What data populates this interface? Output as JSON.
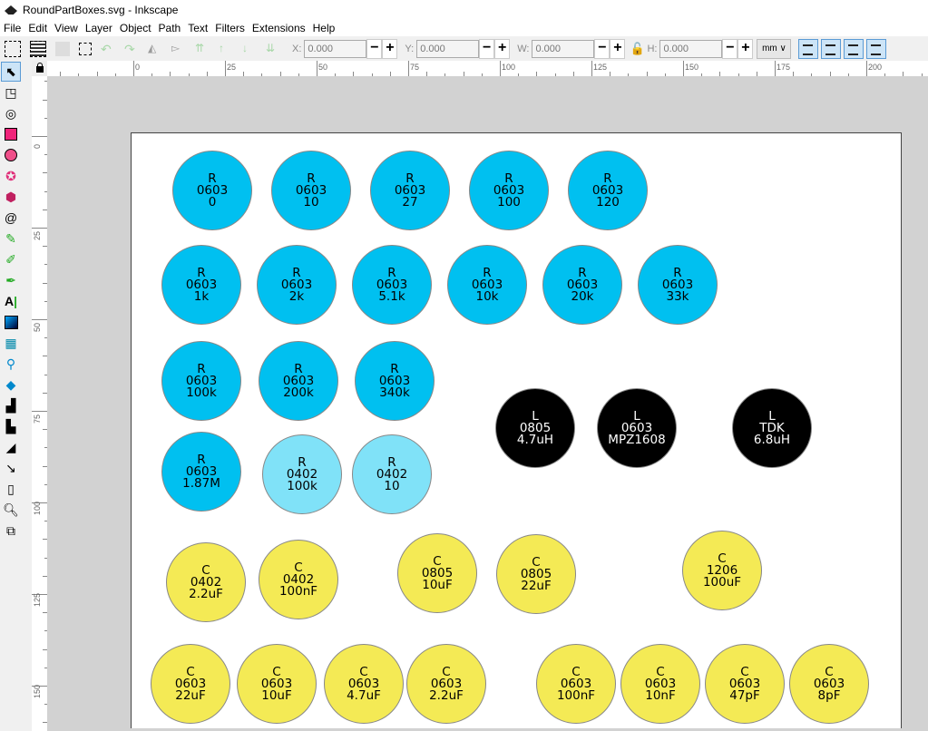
{
  "window": {
    "title": "RoundPartBoxes.svg - Inkscape"
  },
  "menu": [
    "File",
    "Edit",
    "View",
    "Layer",
    "Object",
    "Path",
    "Text",
    "Filters",
    "Extensions",
    "Help"
  ],
  "toolbar": {
    "x_label": "X:",
    "x_value": "0.000",
    "y_label": "Y:",
    "y_value": "0.000",
    "w_label": "W:",
    "w_value": "0.000",
    "h_label": "H:",
    "h_value": "0.000",
    "unit": "mm ∨",
    "minus": "−",
    "plus": "+"
  },
  "ruler": {
    "h_ticks": [
      "0",
      "25",
      "50",
      "75",
      "100",
      "125",
      "150",
      "175",
      "200"
    ],
    "v_ticks": [
      "0",
      "25",
      "50",
      "75",
      "100",
      "125",
      "150"
    ]
  },
  "colors": {
    "resistor_0603": "#00c0f0",
    "resistor_0402": "#80e2f8",
    "inductor": "#000000",
    "capacitor": "#f4ea55"
  },
  "parts": [
    {
      "type": "R",
      "package": "0603",
      "value": "0",
      "kind": "resistor_0603"
    },
    {
      "type": "R",
      "package": "0603",
      "value": "10",
      "kind": "resistor_0603"
    },
    {
      "type": "R",
      "package": "0603",
      "value": "27",
      "kind": "resistor_0603"
    },
    {
      "type": "R",
      "package": "0603",
      "value": "100",
      "kind": "resistor_0603"
    },
    {
      "type": "R",
      "package": "0603",
      "value": "120",
      "kind": "resistor_0603"
    },
    {
      "type": "R",
      "package": "0603",
      "value": "1k",
      "kind": "resistor_0603"
    },
    {
      "type": "R",
      "package": "0603",
      "value": "2k",
      "kind": "resistor_0603"
    },
    {
      "type": "R",
      "package": "0603",
      "value": "5.1k",
      "kind": "resistor_0603"
    },
    {
      "type": "R",
      "package": "0603",
      "value": "10k",
      "kind": "resistor_0603"
    },
    {
      "type": "R",
      "package": "0603",
      "value": "20k",
      "kind": "resistor_0603"
    },
    {
      "type": "R",
      "package": "0603",
      "value": "33k",
      "kind": "resistor_0603"
    },
    {
      "type": "R",
      "package": "0603",
      "value": "100k",
      "kind": "resistor_0603"
    },
    {
      "type": "R",
      "package": "0603",
      "value": "200k",
      "kind": "resistor_0603"
    },
    {
      "type": "R",
      "package": "0603",
      "value": "340k",
      "kind": "resistor_0603"
    },
    {
      "type": "L",
      "package": "0805",
      "value": "4.7uH",
      "kind": "inductor"
    },
    {
      "type": "L",
      "package": "0603",
      "value": "MPZ1608",
      "kind": "inductor"
    },
    {
      "type": "L",
      "package": "TDK",
      "value": "6.8uH",
      "kind": "inductor"
    },
    {
      "type": "R",
      "package": "0603",
      "value": "1.87M",
      "kind": "resistor_0603"
    },
    {
      "type": "R",
      "package": "0402",
      "value": "100k",
      "kind": "resistor_0402"
    },
    {
      "type": "R",
      "package": "0402",
      "value": "10",
      "kind": "resistor_0402"
    },
    {
      "type": "C",
      "package": "0402",
      "value": "2.2uF",
      "kind": "capacitor"
    },
    {
      "type": "C",
      "package": "0402",
      "value": "100nF",
      "kind": "capacitor"
    },
    {
      "type": "C",
      "package": "0805",
      "value": "10uF",
      "kind": "capacitor"
    },
    {
      "type": "C",
      "package": "0805",
      "value": "22uF",
      "kind": "capacitor"
    },
    {
      "type": "C",
      "package": "1206",
      "value": "100uF",
      "kind": "capacitor"
    },
    {
      "type": "C",
      "package": "0603",
      "value": "22uF",
      "kind": "capacitor"
    },
    {
      "type": "C",
      "package": "0603",
      "value": "10uF",
      "kind": "capacitor"
    },
    {
      "type": "C",
      "package": "0603",
      "value": "4.7uF",
      "kind": "capacitor"
    },
    {
      "type": "C",
      "package": "0603",
      "value": "2.2uF",
      "kind": "capacitor"
    },
    {
      "type": "C",
      "package": "0603",
      "value": "100nF",
      "kind": "capacitor"
    },
    {
      "type": "C",
      "package": "0603",
      "value": "10nF",
      "kind": "capacitor"
    },
    {
      "type": "C",
      "package": "0603",
      "value": "47pF",
      "kind": "capacitor"
    },
    {
      "type": "C",
      "package": "0603",
      "value": "8pF",
      "kind": "capacitor"
    }
  ]
}
